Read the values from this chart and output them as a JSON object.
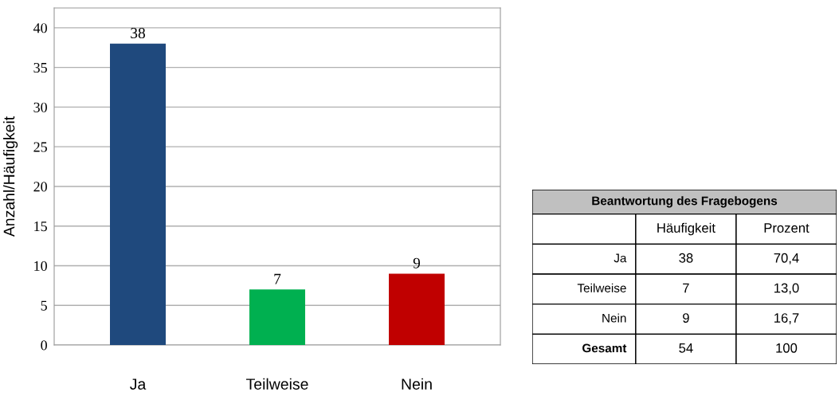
{
  "chart_data": [
    {
      "type": "bar",
      "ylabel": "Anzahl/Häufigkeit",
      "categories": [
        "Ja",
        "Teilweise",
        "Nein"
      ],
      "values": [
        38,
        7,
        9
      ],
      "colors": [
        "#1f497d",
        "#00b050",
        "#c00000"
      ],
      "ylim": [
        0,
        42.5
      ],
      "yticks": [
        0,
        5,
        10,
        15,
        20,
        25,
        30,
        35,
        40
      ],
      "grid": "y",
      "data_labels": true
    },
    {
      "type": "other",
      "title": "Beantwortung des Fragebogens",
      "categories": [
        "Ja",
        "Teilweise",
        "Nein",
        "Gesamt"
      ],
      "series": [
        {
          "name": "Häufigkeit",
          "values": [
            38,
            7,
            9,
            54
          ]
        },
        {
          "name": "Prozent",
          "values": [
            70.4,
            13.0,
            16.7,
            100
          ],
          "value_labels": [
            "70,4",
            "13,0",
            "16,7",
            "100"
          ]
        }
      ],
      "data_labels": true
    }
  ]
}
